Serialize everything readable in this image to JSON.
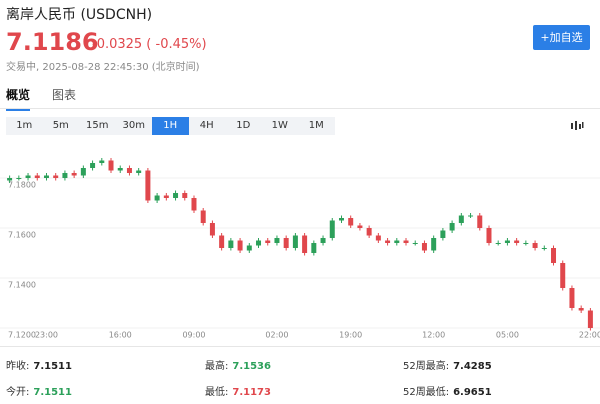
{
  "header": {
    "title": "离岸人民币 (USDCNH)",
    "price": "7.1186",
    "change": "-0.0325 ( -0.45%)",
    "status": "交易中, 2025-08-28 22:45:30 (北京时间)",
    "button": "+加自选"
  },
  "tabs": [
    "概览",
    "图表"
  ],
  "active_tab": "概览",
  "intervals": [
    "1m",
    "5m",
    "15m",
    "30m",
    "1H",
    "4H",
    "1D",
    "1W",
    "1M"
  ],
  "active_interval": "1H",
  "chart_data": {
    "type": "candlestick",
    "up_color": "#2ca05a",
    "down_color": "#e0474c",
    "grid": true,
    "ylim": [
      7.116,
      7.1952
    ],
    "yticks": [
      {
        "value": 7.12,
        "label": "7.1200"
      },
      {
        "value": 7.14,
        "label": "7.1400"
      },
      {
        "value": 7.16,
        "label": "7.1600"
      },
      {
        "value": 7.18,
        "label": "7.1800"
      }
    ],
    "categories": [
      null,
      null,
      null,
      null,
      "23:00",
      null,
      null,
      null,
      null,
      null,
      null,
      null,
      "16:00",
      null,
      null,
      null,
      null,
      null,
      null,
      null,
      "09:00",
      null,
      null,
      null,
      null,
      null,
      null,
      null,
      null,
      "02:00",
      null,
      null,
      null,
      null,
      null,
      null,
      null,
      "19:00",
      null,
      null,
      null,
      null,
      null,
      null,
      null,
      null,
      "12:00",
      null,
      null,
      null,
      null,
      null,
      null,
      null,
      "05:00",
      null,
      null,
      null,
      null,
      null,
      null,
      null,
      null,
      "22:00"
    ],
    "open": [
      7.179,
      7.18,
      7.18,
      7.181,
      7.18,
      7.181,
      7.18,
      7.182,
      7.181,
      7.184,
      7.186,
      7.187,
      7.183,
      7.184,
      7.182,
      7.183,
      7.171,
      7.173,
      7.172,
      7.174,
      7.172,
      7.167,
      7.162,
      7.157,
      7.152,
      7.155,
      7.151,
      7.153,
      7.155,
      7.154,
      7.156,
      7.152,
      7.157,
      7.15,
      7.154,
      7.156,
      7.163,
      7.164,
      7.161,
      7.16,
      7.157,
      7.155,
      7.154,
      7.155,
      7.154,
      7.154,
      7.151,
      7.156,
      7.159,
      7.162,
      7.165,
      7.165,
      7.16,
      7.154,
      7.154,
      7.155,
      7.154,
      7.154,
      7.152,
      7.152,
      7.146,
      7.136,
      7.128,
      7.127
    ],
    "high": [
      7.181,
      7.181,
      7.182,
      7.182,
      7.182,
      7.182,
      7.183,
      7.183,
      7.185,
      7.187,
      7.188,
      7.188,
      7.185,
      7.185,
      7.184,
      7.184,
      7.174,
      7.174,
      7.175,
      7.175,
      7.173,
      7.168,
      7.163,
      7.158,
      7.156,
      7.156,
      7.154,
      7.156,
      7.156,
      7.157,
      7.157,
      7.158,
      7.158,
      7.155,
      7.157,
      7.164,
      7.165,
      7.165,
      7.162,
      7.161,
      7.158,
      7.156,
      7.156,
      7.156,
      7.155,
      7.155,
      7.157,
      7.16,
      7.163,
      7.166,
      7.166,
      7.166,
      7.161,
      7.155,
      7.156,
      7.156,
      7.155,
      7.155,
      7.153,
      7.153,
      7.147,
      7.137,
      7.129,
      7.128
    ],
    "low": [
      7.178,
      7.179,
      7.179,
      7.179,
      7.179,
      7.179,
      7.179,
      7.18,
      7.18,
      7.183,
      7.185,
      7.182,
      7.182,
      7.181,
      7.181,
      7.17,
      7.17,
      7.171,
      7.171,
      7.171,
      7.166,
      7.161,
      7.156,
      7.151,
      7.151,
      7.15,
      7.15,
      7.152,
      7.153,
      7.153,
      7.151,
      7.151,
      7.149,
      7.149,
      7.153,
      7.155,
      7.162,
      7.16,
      7.159,
      7.156,
      7.154,
      7.153,
      7.153,
      7.153,
      7.153,
      7.15,
      7.15,
      7.155,
      7.158,
      7.161,
      7.164,
      7.159,
      7.153,
      7.153,
      7.153,
      7.153,
      7.153,
      7.151,
      7.151,
      7.145,
      7.135,
      7.127,
      7.126,
      7.119
    ],
    "close": [
      7.18,
      7.18,
      7.181,
      7.18,
      7.181,
      7.18,
      7.182,
      7.181,
      7.184,
      7.186,
      7.187,
      7.183,
      7.184,
      7.182,
      7.183,
      7.171,
      7.173,
      7.172,
      7.174,
      7.172,
      7.167,
      7.162,
      7.157,
      7.152,
      7.155,
      7.151,
      7.153,
      7.155,
      7.154,
      7.156,
      7.152,
      7.157,
      7.15,
      7.154,
      7.156,
      7.163,
      7.164,
      7.161,
      7.16,
      7.157,
      7.155,
      7.154,
      7.155,
      7.154,
      7.154,
      7.151,
      7.156,
      7.159,
      7.162,
      7.165,
      7.165,
      7.16,
      7.154,
      7.154,
      7.155,
      7.154,
      7.154,
      7.152,
      7.152,
      7.146,
      7.136,
      7.128,
      7.127,
      7.12
    ]
  },
  "stats": [
    {
      "label": "昨收:",
      "value": "7.1511",
      "color": "#222"
    },
    {
      "label": "最高:",
      "value": "7.1536",
      "color": "#2ca05a"
    },
    {
      "label": "52周最高:",
      "value": "7.4285",
      "color": "#222"
    },
    {
      "label": "今开:",
      "value": "7.1511",
      "color": "#2ca05a"
    },
    {
      "label": "最低:",
      "value": "7.1173",
      "color": "#e0474c"
    },
    {
      "label": "52周最低:",
      "value": "6.9651",
      "color": "#222"
    }
  ]
}
